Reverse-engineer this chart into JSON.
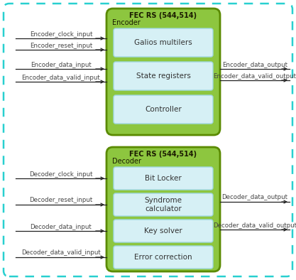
{
  "bg_color": "#ffffff",
  "outer_border_color": "#29d0d0",
  "green_box_color": "#8dc63f",
  "green_box_border": "#5a8a00",
  "light_blue_box_color": "#d6f0f5",
  "light_blue_box_border": "#a0d8e0",
  "encoder_title": "FEC RS (544,514)",
  "encoder_subtitle": "Encoder",
  "decoder_title": "FEC RS (544,514)",
  "decoder_subtitle": "Decoder",
  "encoder_blocks": [
    "Galios multilers",
    "State registers",
    "Controller"
  ],
  "decoder_blocks": [
    "Bit Locker",
    "Syndrome\ncalculator",
    "Key solver",
    "Error correction"
  ],
  "encoder_inputs": [
    "Encoder_clock_input",
    "Encoder_reset_input",
    "Encoder_data_input",
    "Encoder_data_valid_input"
  ],
  "encoder_outputs": [
    "Encoder_data_output",
    "Encoder_data_valid_output"
  ],
  "decoder_inputs": [
    "Decoder_clock_input",
    "Decoder_reset_input",
    "Decoder_data_input",
    "Decoder_data_valid_input"
  ],
  "decoder_outputs": [
    "Decoder_data_output",
    "Decoder_data_valid_output"
  ],
  "arrow_color": "#222222"
}
